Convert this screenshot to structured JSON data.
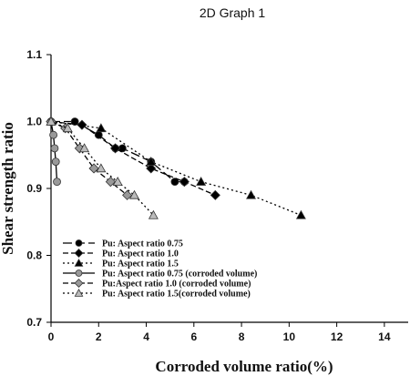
{
  "chart_data": {
    "type": "line",
    "title": "2D Graph 1",
    "xlabel": "Corroded volume ratio(%)",
    "ylabel": "Shear strength ratio",
    "xlim": [
      0,
      15
    ],
    "ylim": [
      0.7,
      1.1
    ],
    "xticks": [
      0,
      2,
      4,
      6,
      8,
      10,
      12,
      14
    ],
    "yticks": [
      0.7,
      0.8,
      0.9,
      1.0,
      1.1
    ],
    "xtick_labels": [
      "0",
      "2",
      "4",
      "6",
      "8",
      "10",
      "12",
      "14"
    ],
    "ytick_labels": [
      "0.7",
      "0.8",
      "0.9",
      "1.0",
      "1.1"
    ],
    "grid": false,
    "legend_position": "bottom-left",
    "series": [
      {
        "name": "Pu: Aspect ratio 0.75",
        "marker": "circle",
        "dash": "long-dash",
        "color": "#000000",
        "x": [
          0,
          1.0,
          2.0,
          2.7,
          3.0,
          4.2,
          5.2,
          5.6
        ],
        "y": [
          1.0,
          1.0,
          0.98,
          0.96,
          0.96,
          0.94,
          0.91,
          0.91
        ]
      },
      {
        "name": "Pu: Aspect ratio 1.0",
        "marker": "diamond",
        "dash": "dash",
        "color": "#000000",
        "x": [
          0,
          1.3,
          2.7,
          4.2,
          5.6,
          6.9
        ],
        "y": [
          1.0,
          0.995,
          0.96,
          0.93,
          0.91,
          0.89
        ]
      },
      {
        "name": "Pu: Aspect ratio 1.5",
        "marker": "triangle",
        "dash": "dot",
        "color": "#000000",
        "x": [
          0,
          2.1,
          4.2,
          6.3,
          8.4,
          10.5
        ],
        "y": [
          1.0,
          0.99,
          0.94,
          0.91,
          0.89,
          0.86
        ]
      },
      {
        "name": "Pu: Aspect ratio 0.75 (corroded volume)",
        "marker": "circle",
        "dash": "solid",
        "color": "#999999",
        "x": [
          0,
          0.1,
          0.15,
          0.2,
          0.25
        ],
        "y": [
          1.0,
          0.98,
          0.96,
          0.94,
          0.91
        ]
      },
      {
        "name": "Pu:Aspect ratio 1.0 (corroded volume)",
        "marker": "diamond",
        "dash": "dash",
        "color": "#999999",
        "x": [
          0,
          0.6,
          1.2,
          1.8,
          2.5,
          3.2
        ],
        "y": [
          1.0,
          0.99,
          0.96,
          0.93,
          0.91,
          0.89
        ]
      },
      {
        "name": "Pu: Aspect ratio 1.5(corroded volume)",
        "marker": "triangle",
        "dash": "dot",
        "color": "#bbbbbb",
        "x": [
          0,
          0.7,
          1.4,
          2.1,
          2.8,
          3.5,
          4.3
        ],
        "y": [
          1.0,
          0.99,
          0.96,
          0.93,
          0.91,
          0.89,
          0.86
        ]
      }
    ]
  }
}
